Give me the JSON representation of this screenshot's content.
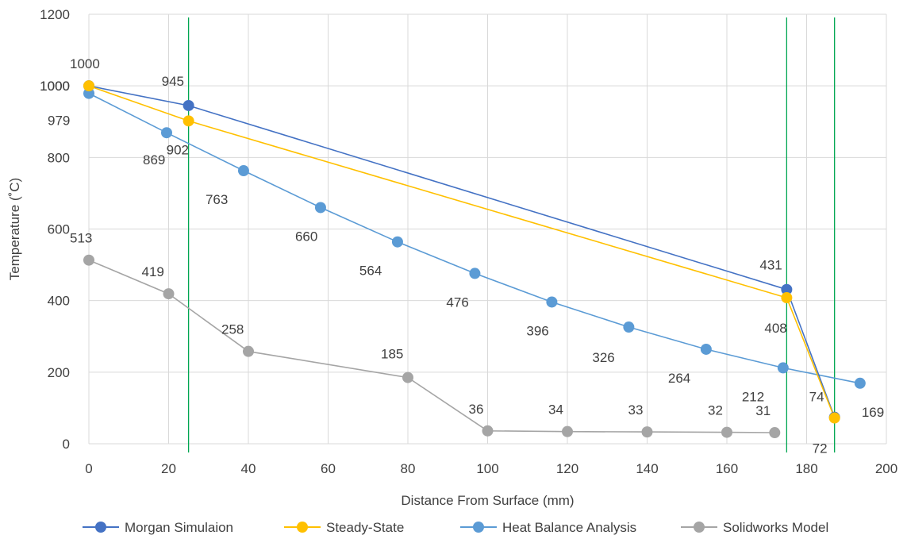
{
  "chart_data": {
    "type": "line",
    "title": "",
    "xlabel": "Distance From Surface (mm)",
    "ylabel": "Temperature (˚C)",
    "xlim": [
      0,
      200
    ],
    "ylim": [
      0,
      1200
    ],
    "x_ticks": [
      "0",
      "20",
      "40",
      "60",
      "80",
      "100",
      "120",
      "140",
      "160",
      "180",
      "200"
    ],
    "y_ticks": [
      "0",
      "200",
      "400",
      "600",
      "800",
      "1000",
      "1200"
    ],
    "y_tick_extra": "1000",
    "grid": true,
    "legend_position": "bottom",
    "vertical_reference_lines": [
      {
        "x": 25,
        "color": "#00a651"
      },
      {
        "x": 175,
        "color": "#00a651"
      },
      {
        "x": 187,
        "color": "#00a651"
      }
    ],
    "series": [
      {
        "name": "Heat Balance Analysis",
        "color": "#5b9bd5",
        "points": [
          {
            "x": 0,
            "y": 979,
            "label": "979"
          },
          {
            "x": 19.5,
            "y": 869,
            "label": "869"
          },
          {
            "x": 38.8,
            "y": 763,
            "label": "763"
          },
          {
            "x": 58.1,
            "y": 660,
            "label": "660"
          },
          {
            "x": 77.4,
            "y": 564,
            "label": "564"
          },
          {
            "x": 96.8,
            "y": 476,
            "label": "476"
          },
          {
            "x": 116.1,
            "y": 396,
            "label": "396"
          },
          {
            "x": 135.4,
            "y": 326,
            "label": "326"
          },
          {
            "x": 154.8,
            "y": 264,
            "label": "264"
          },
          {
            "x": 174.1,
            "y": 212,
            "label": "212"
          },
          {
            "x": 193.4,
            "y": 169,
            "label": "169"
          }
        ]
      },
      {
        "name": "Morgan Simulaion",
        "color": "#4472c4",
        "points": [
          {
            "x": 0,
            "y": 1000,
            "label": ""
          },
          {
            "x": 25,
            "y": 945,
            "label": "945"
          },
          {
            "x": 175,
            "y": 431,
            "label": "431"
          },
          {
            "x": 187,
            "y": 74,
            "label": "74"
          }
        ]
      },
      {
        "name": "Steady-State",
        "color": "#ffc000",
        "points": [
          {
            "x": 0,
            "y": 1000,
            "label": "1000"
          },
          {
            "x": 25,
            "y": 902,
            "label": "902"
          },
          {
            "x": 175,
            "y": 408,
            "label": "408"
          },
          {
            "x": 187,
            "y": 72,
            "label": "72"
          }
        ]
      },
      {
        "name": "Solidworks Model",
        "color": "#a5a5a5",
        "points": [
          {
            "x": 0,
            "y": 513,
            "label": "513"
          },
          {
            "x": 20,
            "y": 419,
            "label": "419"
          },
          {
            "x": 40,
            "y": 258,
            "label": "258"
          },
          {
            "x": 80,
            "y": 185,
            "label": "185"
          },
          {
            "x": 100,
            "y": 36,
            "label": "36"
          },
          {
            "x": 120,
            "y": 34,
            "label": "34"
          },
          {
            "x": 140,
            "y": 33,
            "label": "33"
          },
          {
            "x": 160,
            "y": 32,
            "label": "32"
          },
          {
            "x": 172,
            "y": 31,
            "label": "31"
          }
        ]
      }
    ],
    "legend": [
      {
        "name": "Morgan Simulaion",
        "color": "#4472c4"
      },
      {
        "name": "Steady-State",
        "color": "#ffc000"
      },
      {
        "name": "Heat Balance Analysis",
        "color": "#5b9bd5"
      },
      {
        "name": "Solidworks Model",
        "color": "#a5a5a5"
      }
    ]
  }
}
